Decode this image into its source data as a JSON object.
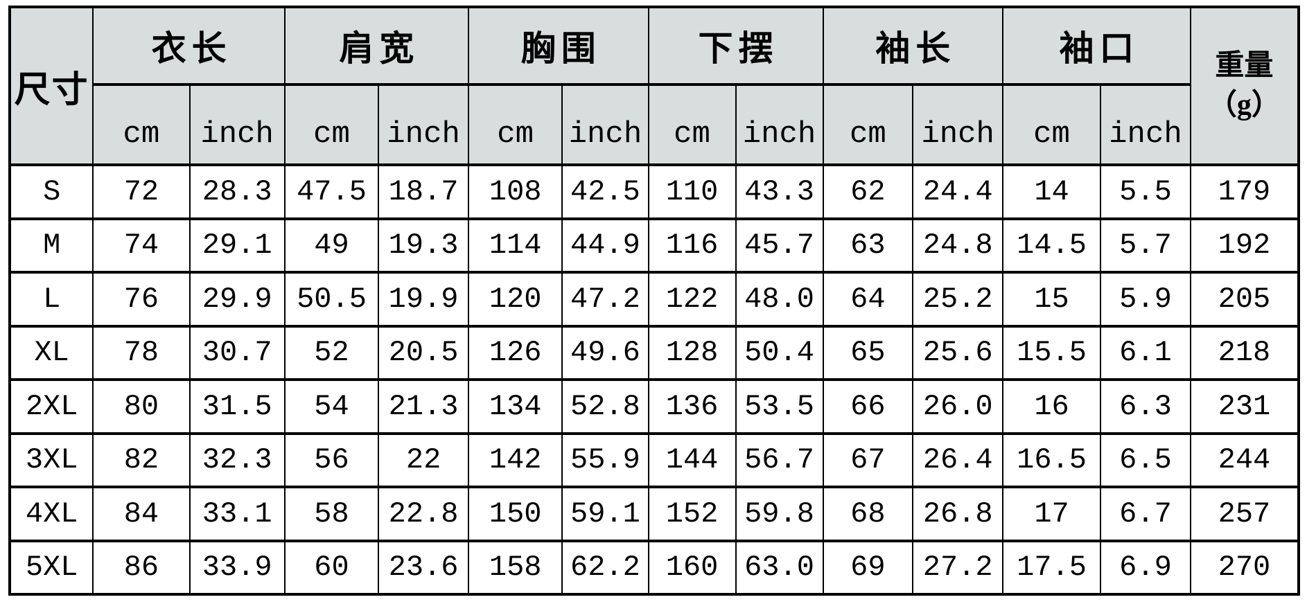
{
  "colors": {
    "header_bg": "#d7dedd",
    "border": "#000000",
    "cell_bg": "#ffffff",
    "text": "#000000"
  },
  "chart_data": {
    "type": "table",
    "corner_label": "尺寸",
    "column_groups": [
      "衣长",
      "肩宽",
      "胸围",
      "下摆",
      "袖长",
      "袖口"
    ],
    "unit_cm": "cm",
    "unit_inch": "inch",
    "weight_label": {
      "line1": "重量",
      "line2": "（g）"
    },
    "row_header": "size",
    "sub_columns_per_group": [
      "cm",
      "inch"
    ],
    "rows": [
      [
        "S",
        "72",
        "28.3",
        "47.5",
        "18.7",
        "108",
        "42.5",
        "110",
        "43.3",
        "62",
        "24.4",
        "14",
        "5.5",
        "179"
      ],
      [
        "M",
        "74",
        "29.1",
        "49",
        "19.3",
        "114",
        "44.9",
        "116",
        "45.7",
        "63",
        "24.8",
        "14.5",
        "5.7",
        "192"
      ],
      [
        "L",
        "76",
        "29.9",
        "50.5",
        "19.9",
        "120",
        "47.2",
        "122",
        "48.0",
        "64",
        "25.2",
        "15",
        "5.9",
        "205"
      ],
      [
        "XL",
        "78",
        "30.7",
        "52",
        "20.5",
        "126",
        "49.6",
        "128",
        "50.4",
        "65",
        "25.6",
        "15.5",
        "6.1",
        "218"
      ],
      [
        "2XL",
        "80",
        "31.5",
        "54",
        "21.3",
        "134",
        "52.8",
        "136",
        "53.5",
        "66",
        "26.0",
        "16",
        "6.3",
        "231"
      ],
      [
        "3XL",
        "82",
        "32.3",
        "56",
        "22",
        "142",
        "55.9",
        "144",
        "56.7",
        "67",
        "26.4",
        "16.5",
        "6.5",
        "244"
      ],
      [
        "4XL",
        "84",
        "33.1",
        "58",
        "22.8",
        "150",
        "59.1",
        "152",
        "59.8",
        "68",
        "26.8",
        "17",
        "6.7",
        "257"
      ],
      [
        "5XL",
        "86",
        "33.9",
        "60",
        "23.6",
        "158",
        "62.2",
        "160",
        "63.0",
        "69",
        "27.2",
        "17.5",
        "6.9",
        "270"
      ]
    ]
  }
}
